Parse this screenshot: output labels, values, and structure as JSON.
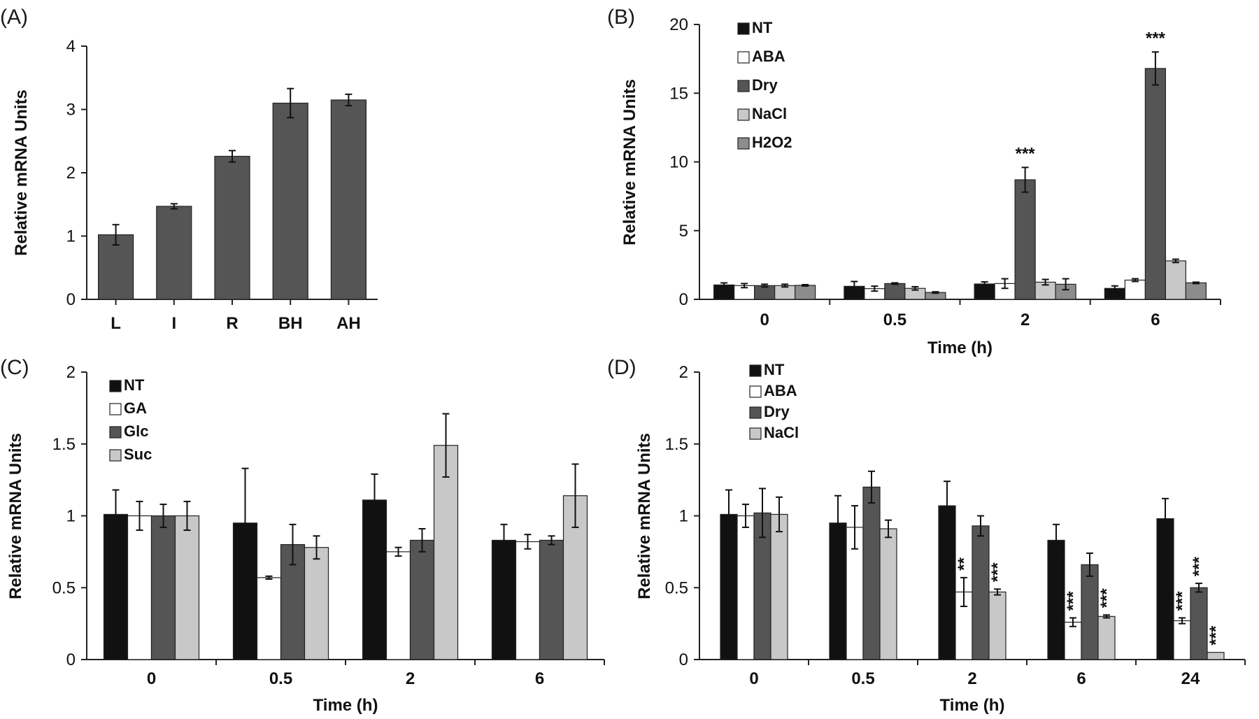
{
  "colors": {
    "black": "#111111",
    "white": "#ffffff",
    "dark_gray": "#555555",
    "light_gray": "#c8c8c8",
    "mid_gray": "#8c8c8c"
  },
  "chart_data": [
    {
      "panel": "(A)",
      "type": "bar",
      "title": "",
      "xlabel": "",
      "ylabel": "Relative mRNA Units",
      "ylim": [
        0,
        4
      ],
      "yticks": [
        "0",
        "1",
        "2",
        "3",
        "4"
      ],
      "categories": [
        "L",
        "I",
        "R",
        "BH",
        "AH"
      ],
      "series": [
        {
          "name": "",
          "color": "#555555",
          "values": [
            1.02,
            1.47,
            2.26,
            3.1,
            3.15
          ],
          "errors": [
            0.16,
            0.04,
            0.09,
            0.23,
            0.09
          ]
        }
      ],
      "legend": []
    },
    {
      "panel": "(B)",
      "type": "bar",
      "title": "",
      "xlabel": "Time (h)",
      "ylabel": "Relative mRNA Units",
      "ylim": [
        0,
        20
      ],
      "yticks": [
        "0",
        "5",
        "10",
        "15",
        "20"
      ],
      "categories": [
        "0",
        "0.5",
        "2",
        "6"
      ],
      "series": [
        {
          "name": "NT",
          "color": "#111111",
          "values": [
            1.05,
            0.95,
            1.12,
            0.8
          ],
          "errors": [
            0.15,
            0.35,
            0.15,
            0.18
          ]
        },
        {
          "name": "ABA",
          "color": "#ffffff",
          "values": [
            1.0,
            0.78,
            1.15,
            1.4
          ],
          "errors": [
            0.15,
            0.18,
            0.35,
            0.1
          ]
        },
        {
          "name": "Dry",
          "color": "#555555",
          "values": [
            1.0,
            1.15,
            8.7,
            16.8
          ],
          "errors": [
            0.1,
            0.05,
            0.9,
            1.2
          ]
        },
        {
          "name": "NaCl",
          "color": "#c8c8c8",
          "values": [
            1.0,
            0.8,
            1.25,
            2.8
          ],
          "errors": [
            0.1,
            0.12,
            0.2,
            0.12
          ]
        },
        {
          "name": "H2O2",
          "color": "#8c8c8c",
          "values": [
            1.02,
            0.5,
            1.1,
            1.2
          ],
          "errors": [
            0.05,
            0.05,
            0.4,
            0.05
          ]
        }
      ],
      "annotations": [
        {
          "category": "2",
          "series": "Dry",
          "text": "***"
        },
        {
          "category": "6",
          "series": "Dry",
          "text": "***"
        }
      ],
      "legend": [
        "NT",
        "ABA",
        "Dry",
        "NaCl",
        "H2O2"
      ]
    },
    {
      "panel": "(C)",
      "type": "bar",
      "title": "",
      "xlabel": "Time (h)",
      "ylabel": "Relative mRNA Units",
      "ylim": [
        0,
        2
      ],
      "yticks": [
        "0",
        "0.5",
        "1",
        "1.5",
        "2"
      ],
      "categories": [
        "0",
        "0.5",
        "2",
        "6"
      ],
      "series": [
        {
          "name": "NT",
          "color": "#111111",
          "values": [
            1.01,
            0.95,
            1.11,
            0.83
          ],
          "errors": [
            0.17,
            0.38,
            0.18,
            0.11
          ]
        },
        {
          "name": "GA",
          "color": "#ffffff",
          "values": [
            1.0,
            0.57,
            0.75,
            0.82
          ],
          "errors": [
            0.1,
            0.01,
            0.03,
            0.05
          ]
        },
        {
          "name": "Glc",
          "color": "#555555",
          "values": [
            1.0,
            0.8,
            0.83,
            0.83
          ],
          "errors": [
            0.08,
            0.14,
            0.08,
            0.03
          ]
        },
        {
          "name": "Suc",
          "color": "#c8c8c8",
          "values": [
            1.0,
            0.78,
            1.49,
            1.14
          ],
          "errors": [
            0.1,
            0.08,
            0.22,
            0.22
          ]
        }
      ],
      "annotations": [],
      "legend": [
        "NT",
        "GA",
        "Glc",
        "Suc"
      ]
    },
    {
      "panel": "(D)",
      "type": "bar",
      "title": "",
      "xlabel": "Time (h)",
      "ylabel": "Relative mRNA Units",
      "ylim": [
        0,
        2
      ],
      "yticks": [
        "0",
        "0.5",
        "1",
        "1.5",
        "2"
      ],
      "categories": [
        "0",
        "0.5",
        "2",
        "6",
        "24"
      ],
      "series": [
        {
          "name": "NT",
          "color": "#111111",
          "values": [
            1.01,
            0.95,
            1.07,
            0.83,
            0.98
          ],
          "errors": [
            0.17,
            0.19,
            0.17,
            0.11,
            0.14
          ]
        },
        {
          "name": "ABA",
          "color": "#ffffff",
          "values": [
            1.0,
            0.92,
            0.47,
            0.26,
            0.27
          ],
          "errors": [
            0.08,
            0.15,
            0.1,
            0.03,
            0.02
          ]
        },
        {
          "name": "Dry",
          "color": "#555555",
          "values": [
            1.02,
            1.2,
            0.93,
            0.66,
            0.5
          ],
          "errors": [
            0.17,
            0.11,
            0.07,
            0.08,
            0.03
          ]
        },
        {
          "name": "NaCl",
          "color": "#c8c8c8",
          "values": [
            1.01,
            0.91,
            0.47,
            0.3,
            0.05
          ],
          "errors": [
            0.12,
            0.06,
            0.02,
            0.01,
            0.0
          ]
        }
      ],
      "annotations": [
        {
          "category": "2",
          "series": "ABA",
          "text": "**"
        },
        {
          "category": "2",
          "series": "NaCl",
          "text": "***"
        },
        {
          "category": "6",
          "series": "ABA",
          "text": "***"
        },
        {
          "category": "6",
          "series": "NaCl",
          "text": "***"
        },
        {
          "category": "24",
          "series": "ABA",
          "text": "***"
        },
        {
          "category": "24",
          "series": "Dry",
          "text": "***"
        },
        {
          "category": "24",
          "series": "NaCl",
          "text": "***"
        }
      ],
      "legend": [
        "NT",
        "ABA",
        "Dry",
        "NaCl"
      ]
    }
  ]
}
